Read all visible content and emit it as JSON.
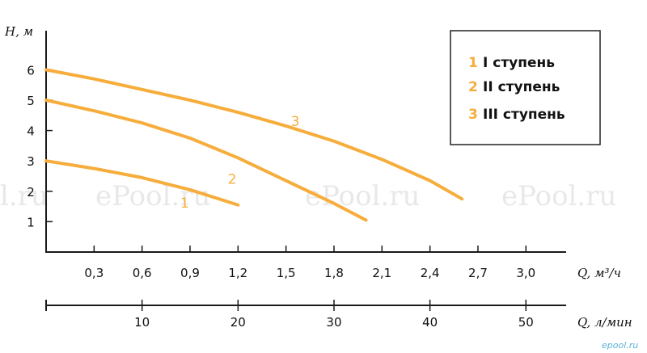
{
  "chart_data": {
    "type": "line",
    "ylabel": "H, м",
    "xlabel": "Q, м³/ч",
    "x2label": "Q, л/мин",
    "y_ticks": [
      "1",
      "2",
      "3",
      "4",
      "5",
      "6"
    ],
    "x_ticks": [
      "0,3",
      "0,6",
      "0,9",
      "1,2",
      "1,5",
      "1,8",
      "2,1",
      "2,4",
      "2,7",
      "3,0"
    ],
    "x2_ticks": [
      "10",
      "20",
      "30",
      "40",
      "50"
    ],
    "ylim": [
      0,
      7
    ],
    "xlim": [
      0,
      3.3
    ],
    "series": [
      {
        "name": "I ступень",
        "label": "1",
        "num": "1",
        "x": [
          0,
          0.3,
          0.6,
          0.9,
          1.2
        ],
        "y": [
          3.0,
          2.75,
          2.45,
          2.05,
          1.55
        ]
      },
      {
        "name": "II ступень",
        "label": "2",
        "num": "2",
        "x": [
          0,
          0.3,
          0.6,
          0.9,
          1.2,
          1.5,
          1.8,
          2.0
        ],
        "y": [
          5.0,
          4.65,
          4.25,
          3.75,
          3.1,
          2.35,
          1.6,
          1.05
        ]
      },
      {
        "name": "III ступень",
        "label": "3",
        "num": "3",
        "x": [
          0,
          0.3,
          0.6,
          0.9,
          1.2,
          1.5,
          1.8,
          2.1,
          2.4,
          2.6
        ],
        "y": [
          6.0,
          5.7,
          5.35,
          5.0,
          4.6,
          4.15,
          3.65,
          3.05,
          2.35,
          1.75
        ]
      }
    ],
    "colors": {
      "curve": "#f6ad3c",
      "axis": "#1a1a1a"
    },
    "legend": "top-right",
    "grid": false
  },
  "watermarks": [
    "l.ru",
    "ePool.ru",
    "ePool.ru",
    "ePool.ru"
  ],
  "footer": "epool.ru"
}
